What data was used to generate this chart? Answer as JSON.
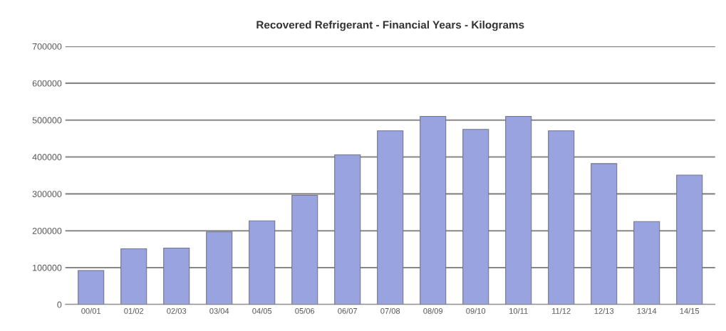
{
  "chart_data": {
    "type": "bar",
    "title": "Recovered Refrigerant - Financial Years - Kilograms",
    "categories": [
      "00/01",
      "01/02",
      "02/03",
      "03/04",
      "04/05",
      "05/06",
      "06/07",
      "07/08",
      "08/09",
      "09/10",
      "10/11",
      "11/12",
      "12/13",
      "13/14",
      "14/15"
    ],
    "values": [
      92000,
      151000,
      153000,
      197000,
      227000,
      296000,
      406000,
      471000,
      510000,
      475000,
      510000,
      471000,
      382000,
      225000,
      351000
    ],
    "color": "#99a3e0",
    "ylim": [
      0,
      700000
    ],
    "yticks": [
      0,
      100000,
      200000,
      300000,
      400000,
      500000,
      600000,
      700000
    ],
    "grid": "y"
  }
}
